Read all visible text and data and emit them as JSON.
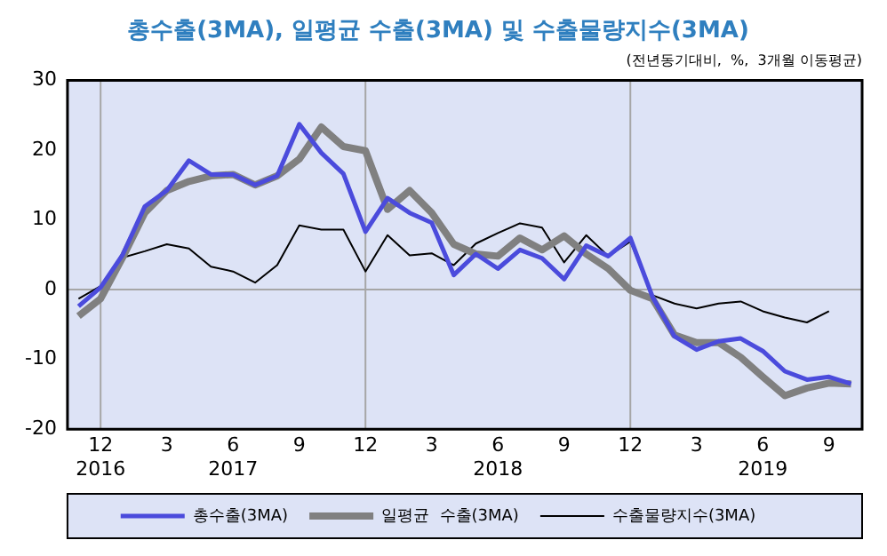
{
  "chart_data": {
    "type": "line",
    "title": "총수출(3MA), 일평균 수출(3MA) 및 수출물량지수(3MA)",
    "subtitle": "(전년동기대비,  %,  3개월 이동평균)",
    "x": [
      "2016-11",
      "2016-12",
      "2017-01",
      "2017-02",
      "2017-03",
      "2017-04",
      "2017-05",
      "2017-06",
      "2017-07",
      "2017-08",
      "2017-09",
      "2017-10",
      "2017-11",
      "2017-12",
      "2018-01",
      "2018-02",
      "2018-03",
      "2018-04",
      "2018-05",
      "2018-06",
      "2018-07",
      "2018-08",
      "2018-09",
      "2018-10",
      "2018-11",
      "2018-12",
      "2019-01",
      "2019-02",
      "2019-03",
      "2019-04",
      "2019-05",
      "2019-06",
      "2019-07",
      "2019-08",
      "2019-09",
      "2019-10"
    ],
    "series": [
      {
        "name": "총수출(3MA)",
        "color": "#4b4bdc",
        "values": [
          -2.4,
          0.3,
          5,
          11.9,
          14.2,
          18.5,
          16.5,
          16.5,
          15,
          16.3,
          23.7,
          19.6,
          16.6,
          8.3,
          13.1,
          11,
          9.6,
          2.1,
          5.1,
          3,
          5.7,
          4.5,
          1.5,
          6.3,
          4.8,
          7.4,
          -1,
          -6.7,
          -8.6,
          -7.4,
          -7,
          -8.8,
          -11.7,
          -12.9,
          -12.5,
          -13.5
        ]
      },
      {
        "name": "일평균  수출(3MA)",
        "color": "#808080",
        "values": [
          -3.8,
          -1.3,
          4.6,
          11,
          14.2,
          15.5,
          16.3,
          16.5,
          15,
          16.3,
          18.7,
          23.3,
          20.5,
          19.9,
          11.5,
          14.2,
          11,
          6.5,
          5.1,
          4.8,
          7.4,
          5.7,
          7.7,
          5.1,
          3,
          -0.1,
          -1.3,
          -6.5,
          -7.6,
          -7.6,
          -9.7,
          -12.5,
          -15.2,
          -14.1,
          -13.4,
          -13.5
        ]
      },
      {
        "name": "수출물량지수(3MA)",
        "color": "#000000",
        "values": [
          -1.3,
          0.5,
          4.6,
          5.5,
          6.5,
          5.9,
          3.3,
          2.6,
          1,
          3.5,
          9.2,
          8.6,
          8.6,
          2.6,
          7.8,
          4.9,
          5.2,
          3.5,
          6.6,
          8.1,
          9.5,
          8.9,
          3.9,
          7.8,
          4.8,
          6.9,
          -0.8,
          -2,
          -2.7,
          -2,
          -1.7,
          -3.1,
          -4,
          -4.7,
          -3.1,
          null
        ]
      }
    ],
    "xlim": [
      "2016-10-16",
      "2019-10-16"
    ],
    "xticks": [
      {
        "value": "2016-12",
        "label": "12\n2016"
      },
      {
        "value": "2017-03",
        "label": "3"
      },
      {
        "value": "2017-06",
        "label": "6\n2017"
      },
      {
        "value": "2017-09",
        "label": "9"
      },
      {
        "value": "2017-12",
        "label": "12"
      },
      {
        "value": "2018-03",
        "label": "3"
      },
      {
        "value": "2018-06",
        "label": "6\n2018"
      },
      {
        "value": "2018-09",
        "label": "9"
      },
      {
        "value": "2018-12",
        "label": "12"
      },
      {
        "value": "2019-03",
        "label": "3"
      },
      {
        "value": "2019-06",
        "label": "6\n2019"
      },
      {
        "value": "2019-09",
        "label": "9"
      }
    ],
    "ylim": [
      -20,
      30
    ],
    "yticks": [
      -20,
      -10,
      0,
      10,
      20,
      30
    ],
    "ref_lines": [
      {
        "axis": "y",
        "value": 0,
        "color": "#a6a6a6"
      },
      {
        "axis": "x",
        "value": "2016-12",
        "color": "#a6a6a6"
      },
      {
        "axis": "x",
        "value": "2017-12",
        "color": "#a6a6a6"
      },
      {
        "axis": "x",
        "value": "2018-12",
        "color": "#a6a6a6"
      }
    ],
    "legend": "bottom",
    "marker": "none",
    "line_style": "solid"
  }
}
